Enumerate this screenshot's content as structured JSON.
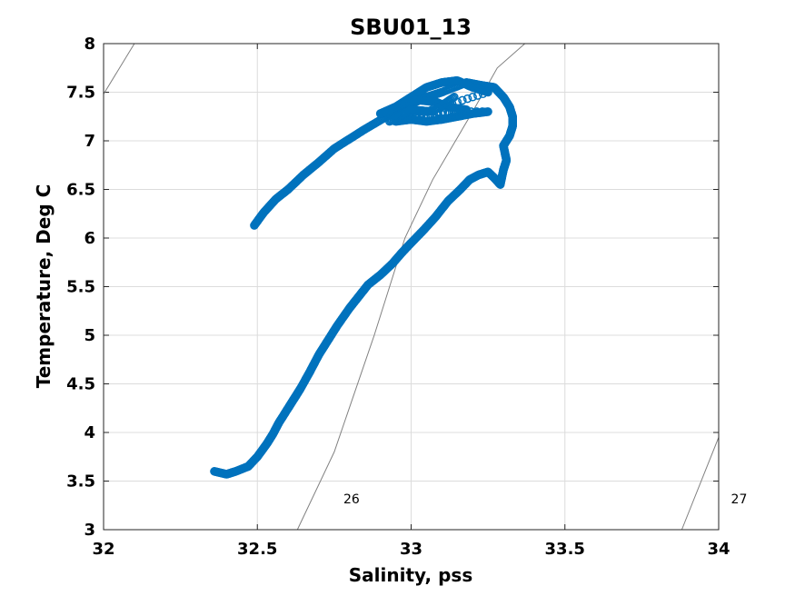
{
  "chart_data": {
    "type": "scatter",
    "title": "SBU01_13",
    "xlabel": "Salinity, pss",
    "ylabel": "Temperature, Deg C",
    "xlim": [
      32,
      34
    ],
    "ylim": [
      3,
      8
    ],
    "xticks": [
      "32",
      "32.5",
      "33",
      "33.5",
      "34"
    ],
    "yticks": [
      "3",
      "3.5",
      "4",
      "4.5",
      "5",
      "5.5",
      "6",
      "6.5",
      "7",
      "7.5",
      "8"
    ],
    "grid": true,
    "marker_color": "#0072BD",
    "isopycnal_color": "#808080",
    "isopycnals": [
      {
        "label": "26",
        "label_at": [
          32.78,
          3.27
        ],
        "points": [
          [
            32.63,
            3.0
          ],
          [
            32.75,
            3.8
          ],
          [
            32.88,
            5.0
          ],
          [
            32.98,
            6.0
          ],
          [
            33.07,
            6.6
          ],
          [
            33.2,
            7.3
          ],
          [
            33.28,
            7.75
          ],
          [
            33.37,
            8.0
          ]
        ]
      },
      {
        "label": "27",
        "label_at": [
          34.04,
          3.27
        ],
        "points": [
          [
            33.88,
            3.0
          ],
          [
            34.0,
            3.95
          ]
        ]
      },
      {
        "label": "",
        "points": [
          [
            32.0,
            7.48
          ],
          [
            32.1,
            8.0
          ]
        ]
      }
    ],
    "series": [
      {
        "marker": "circle",
        "x": [
          32.36,
          32.4,
          32.43,
          32.47,
          32.5,
          32.53,
          32.55,
          32.57,
          32.6,
          32.62,
          32.64,
          32.67,
          32.7,
          32.73,
          32.76,
          32.8,
          32.83,
          32.86,
          32.9,
          32.94,
          32.97,
          33.0,
          33.04,
          33.08,
          33.12,
          33.16,
          33.19,
          33.22,
          33.25,
          33.27,
          33.29,
          33.3,
          33.31,
          33.3,
          33.32,
          33.33,
          33.33,
          33.32,
          33.3,
          33.27,
          33.23,
          33.18,
          33.1,
          33.05,
          32.98,
          32.92,
          32.85,
          32.8,
          32.75,
          32.7,
          32.65,
          32.6,
          32.56,
          32.52,
          32.49
        ],
        "y": [
          3.6,
          3.57,
          3.6,
          3.65,
          3.75,
          3.88,
          3.98,
          4.1,
          4.25,
          4.35,
          4.45,
          4.62,
          4.8,
          4.95,
          5.1,
          5.28,
          5.4,
          5.52,
          5.62,
          5.74,
          5.85,
          5.95,
          6.08,
          6.22,
          6.38,
          6.5,
          6.6,
          6.65,
          6.68,
          6.62,
          6.55,
          6.7,
          6.8,
          6.95,
          7.05,
          7.15,
          7.25,
          7.35,
          7.45,
          7.55,
          7.57,
          7.6,
          7.5,
          7.45,
          7.35,
          7.25,
          7.12,
          7.02,
          6.92,
          6.78,
          6.65,
          6.5,
          6.4,
          6.26,
          6.13
        ]
      },
      {
        "marker": "circle",
        "x": [
          32.9,
          32.95,
          33.0,
          33.05,
          33.1,
          33.15,
          33.2,
          33.25,
          32.95,
          33.0,
          33.05,
          33.1,
          33.15,
          33.2,
          33.25,
          32.92,
          32.97,
          33.02,
          33.08,
          33.12,
          33.18,
          32.93,
          33.0,
          33.07,
          33.14
        ],
        "y": [
          7.28,
          7.35,
          7.45,
          7.55,
          7.6,
          7.62,
          7.55,
          7.5,
          7.2,
          7.22,
          7.2,
          7.22,
          7.25,
          7.28,
          7.3,
          7.3,
          7.38,
          7.42,
          7.4,
          7.35,
          7.32,
          7.2,
          7.32,
          7.3,
          7.45
        ]
      }
    ]
  }
}
